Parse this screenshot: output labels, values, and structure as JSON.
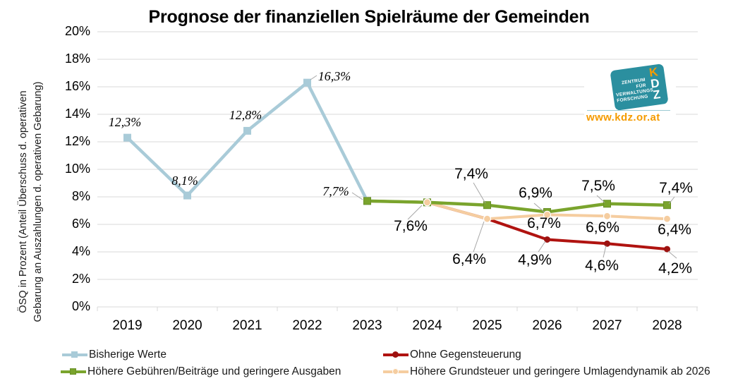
{
  "chart_data": {
    "type": "line",
    "title": "Prognose der finanziellen Spielräume der Gemeinden",
    "y_axis_title_line1": "ÖSQ in Prozent (Anteil Überschuss d. operativen",
    "y_axis_title_line2": "Gebarung an Auszahlungen d. operativen Gebarung)",
    "categories": [
      "2019",
      "2020",
      "2021",
      "2022",
      "2023",
      "2024",
      "2025",
      "2026",
      "2027",
      "2028"
    ],
    "y_ticks": [
      "0%",
      "2%",
      "4%",
      "6%",
      "8%",
      "10%",
      "12%",
      "14%",
      "16%",
      "18%",
      "20%"
    ],
    "ylim": [
      0,
      20
    ],
    "grid": true,
    "legend_position": "bottom",
    "gridline_color": "#d9d9d9",
    "leader_line_color": "#a6a6a6",
    "series": [
      {
        "name": "Bisherige Werte",
        "color": "#a9cbd8",
        "marker": "square",
        "marker_color": "#a9cbd8",
        "x": [
          2019,
          2020,
          2021,
          2022,
          2023
        ],
        "values": [
          12.3,
          8.1,
          12.8,
          16.3,
          7.7
        ],
        "labels": [
          "12,3%",
          "8,1%",
          "12,8%",
          "16,3%",
          "7,7%"
        ]
      },
      {
        "name": "Ohne Gegensteuerung",
        "color": "#b01310",
        "marker": "circle",
        "marker_color": "#9d1210",
        "x": [
          2023,
          2024,
          2025,
          2026,
          2027,
          2028
        ],
        "values": [
          7.7,
          7.6,
          6.4,
          4.9,
          4.6,
          4.2
        ],
        "labels": [
          null,
          "7,6%",
          "6,4%",
          "4,9%",
          "4,6%",
          "4,2%"
        ]
      },
      {
        "name": "Höhere Gebühren/Beiträge und geringere Ausgaben",
        "color": "#7aa42d",
        "marker": "square",
        "marker_color": "#7aa42d",
        "marker_stroke": "#689026",
        "x": [
          2023,
          2024,
          2025,
          2026,
          2027,
          2028
        ],
        "values": [
          7.7,
          7.6,
          7.4,
          6.9,
          7.5,
          7.4
        ],
        "labels": [
          null,
          null,
          "7,4%",
          "6,9%",
          "7,5%",
          "7,4%"
        ]
      },
      {
        "name": "Höhere Grundsteuer und geringere Umlagendynamik ab 2026",
        "color": "#f5cda0",
        "marker": "circle",
        "marker_color": "#f5cda0",
        "marker_stroke": "#ffffff",
        "x": [
          2023,
          2024,
          2025,
          2026,
          2027,
          2028
        ],
        "values": [
          7.7,
          7.6,
          6.4,
          6.7,
          6.6,
          6.4
        ],
        "labels": [
          null,
          null,
          null,
          "6,7%",
          "6,6%",
          "6,4%"
        ]
      }
    ]
  },
  "logo": {
    "org_line1": "ZENTRUM FÜR",
    "org_line2": "VERWALTUNGS",
    "org_line3": "FORSCHUNG",
    "letter_k": "K",
    "letter_d": "D",
    "letter_z": "Z",
    "url": "www.kdz.or.at",
    "teal": "#2b8f9f",
    "orange": "#f59b00"
  }
}
